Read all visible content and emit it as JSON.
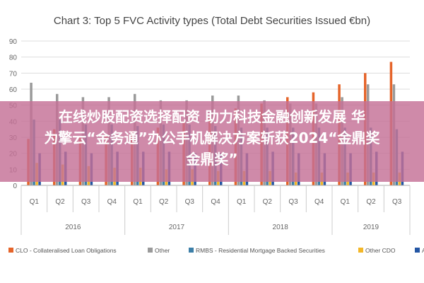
{
  "colors": {
    "CLO": "#e5642a",
    "Other": "#9a9a9a",
    "RMBS": "#3d7fa8",
    "OtherCDO": "#f3b728",
    "ABCP": "#2456a4"
  },
  "chart_data": {
    "type": "bar",
    "title": "Chart 3: Top 5 FVC Activity types (Total Debt Securities Issued €bn)",
    "xlabel": "",
    "ylabel": "",
    "ylim": [
      0,
      90
    ],
    "yticks": [
      0,
      10,
      20,
      30,
      40,
      50,
      60,
      70,
      80,
      90
    ],
    "grid": true,
    "legend": "bottom",
    "categories": [
      "Q1",
      "Q2",
      "Q3",
      "Q4",
      "Q1",
      "Q2",
      "Q3",
      "Q4",
      "Q1",
      "Q2",
      "Q3",
      "Q4",
      "Q1",
      "Q2",
      "Q3"
    ],
    "groups": [
      {
        "label": "2016",
        "start": 0,
        "end": 3
      },
      {
        "label": "2017",
        "start": 4,
        "end": 7
      },
      {
        "label": "2018",
        "start": 8,
        "end": 11
      },
      {
        "label": "2019",
        "start": 12,
        "end": 14
      }
    ],
    "series": [
      {
        "name": "CLO - Collateralised Loan Obligations",
        "color_key": "CLO",
        "values": [
          29,
          35,
          30,
          31,
          34,
          36,
          40,
          43,
          48,
          51,
          55,
          58,
          63,
          70,
          77
        ]
      },
      {
        "name": "Other",
        "color_key": "Other",
        "values": [
          64,
          57,
          55,
          55,
          57,
          53,
          53,
          56,
          56,
          53,
          51,
          51,
          55,
          63,
          63
        ]
      },
      {
        "name": "RMBS - Residential Mortgage Backed Securities",
        "color_key": "RMBS",
        "values": [
          41,
          41,
          38,
          38,
          37,
          38,
          38,
          37,
          36,
          36,
          36,
          36,
          36,
          36,
          35
        ]
      },
      {
        "name": "Other CDO",
        "color_key": "OtherCDO",
        "values": [
          14,
          13,
          12,
          11,
          11,
          10,
          10,
          9,
          9,
          9,
          8,
          8,
          8,
          8,
          8
        ]
      },
      {
        "name": "ABCP",
        "color_key": "ABCP",
        "values": [
          20,
          21,
          20,
          21,
          21,
          21,
          20,
          20,
          20,
          21,
          20,
          20,
          20,
          21,
          21
        ]
      }
    ]
  },
  "overlay": {
    "line1": "在线炒股配资选择配资 助力科技金融创新发展 华",
    "line2": "为擎云“金务通”办公手机解决方案斩获2024“金鼎奖",
    "line3": "金鼎奖”"
  }
}
